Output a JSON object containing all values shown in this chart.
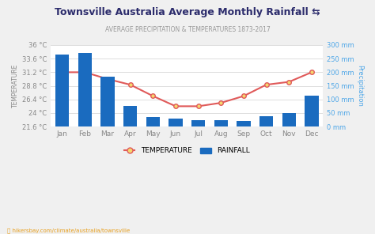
{
  "title": "Townsville Australia Average Monthly Rainfall ⇆",
  "subtitle": "AVERAGE PRECIPITATION & TEMPERATURES 1873-2017",
  "months": [
    "Jan",
    "Feb",
    "Mar",
    "Apr",
    "May",
    "Jun",
    "Jul",
    "Aug",
    "Sep",
    "Oct",
    "Nov",
    "Dec"
  ],
  "rainfall_mm": [
    265,
    270,
    185,
    75,
    35,
    30,
    25,
    25,
    22,
    37,
    50,
    115
  ],
  "temperature_c": [
    31.2,
    31.2,
    30.0,
    29.0,
    27.0,
    25.2,
    25.2,
    25.8,
    27.0,
    29.0,
    29.5,
    31.2
  ],
  "bar_color": "#1a6bbf",
  "line_color": "#e05a5a",
  "marker_face": "#f5d76e",
  "marker_edge": "#e05a5a",
  "bg_color": "#f0f0f0",
  "plot_bg_color": "#ffffff",
  "left_axis_color": "#888888",
  "right_axis_color": "#4da6e8",
  "title_color": "#2c2c6c",
  "subtitle_color": "#999999",
  "temp_ylim": [
    21.6,
    36.0
  ],
  "rain_ylim": [
    0,
    300
  ],
  "temp_yticks": [
    21.6,
    24.0,
    26.4,
    28.8,
    31.2,
    33.6,
    36.0
  ],
  "rain_yticks": [
    0,
    50,
    100,
    150,
    200,
    250,
    300
  ],
  "footer_text": "hikersbay.com/climate/australia/townsville",
  "footer_color": "#e8a020",
  "legend_temp_label": "TEMPERATURE",
  "legend_rain_label": "RAINFALL"
}
